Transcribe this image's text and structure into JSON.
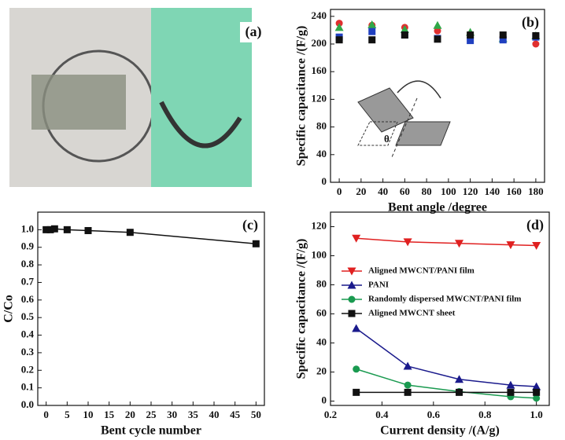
{
  "photo_panel": {
    "label": "(a)"
  },
  "chart_data": [
    {
      "type": "scatter",
      "label": "(b)",
      "x_label": "Bent angle /degree",
      "y_label": "Specific capacitance /(F/g)",
      "annotation": "θ",
      "x": [
        0,
        30,
        60,
        90,
        120,
        150,
        180
      ],
      "series": [
        {
          "color": "#e03030",
          "marker": "circle",
          "values": [
            230,
            227,
            224,
            219,
            214,
            210,
            200
          ]
        },
        {
          "color": "#30a848",
          "marker": "triangle-up",
          "values": [
            224,
            228,
            221,
            227,
            217,
            208,
            212
          ]
        },
        {
          "color": "#2040c0",
          "marker": "square",
          "values": [
            210,
            218,
            213,
            208,
            205,
            206,
            210
          ]
        },
        {
          "color": "#111111",
          "marker": "square",
          "values": [
            206,
            206,
            213,
            207,
            213,
            213,
            212
          ]
        }
      ],
      "xlim": [
        -8,
        188
      ],
      "xticks": [
        0,
        20,
        40,
        60,
        80,
        100,
        120,
        140,
        160,
        180
      ],
      "ylim": [
        0,
        250
      ],
      "yticks": [
        0,
        40,
        80,
        120,
        160,
        200,
        240
      ]
    },
    {
      "type": "line",
      "label": "(c)",
      "x_label": "Bent cycle number",
      "y_label": "C/Co",
      "x": [
        0,
        1,
        2,
        5,
        10,
        20,
        50
      ],
      "series": [
        {
          "color": "#111111",
          "marker": "square",
          "values": [
            1.0,
            1.0,
            1.005,
            1.0,
            0.995,
            0.985,
            0.92
          ]
        }
      ],
      "xlim": [
        -2,
        52
      ],
      "xticks": [
        0,
        5,
        10,
        15,
        20,
        25,
        30,
        35,
        40,
        45,
        50
      ],
      "ylim": [
        0,
        1.1
      ],
      "yticks": [
        {
          "value": 0,
          "label": "0.0"
        },
        0.1,
        0.2,
        0.3,
        0.4,
        0.5,
        0.6,
        0.7,
        0.8,
        0.9,
        {
          "value": 1,
          "label": "1.0"
        }
      ]
    },
    {
      "type": "line",
      "label": "(d)",
      "x_label": "Current density /(A/g)",
      "y_label": "Specific capacitance /(F/g)",
      "legend": "upper left",
      "x": [
        0.3,
        0.5,
        0.7,
        0.9,
        1.0
      ],
      "series": [
        {
          "name": "Aligned MWCNT/PANI film",
          "color": "#e02020",
          "marker": "triangle-down",
          "values": [
            112,
            109.5,
            108.5,
            107.5,
            107
          ]
        },
        {
          "name": "PANI",
          "color": "#1a1a8c",
          "marker": "triangle-up",
          "values": [
            50,
            24,
            15,
            11,
            10
          ]
        },
        {
          "name": "Randomly dispersed MWCNT/PANI film",
          "color": "#1a9a50",
          "marker": "circle",
          "values": [
            22,
            11,
            6.5,
            3,
            2
          ]
        },
        {
          "name": "Aligned MWCNT sheet",
          "color": "#111111",
          "marker": "square",
          "values": [
            6,
            6,
            6,
            6,
            6
          ]
        }
      ],
      "xlim": [
        0.2,
        1.05
      ],
      "xticks": [
        0.2,
        0.4,
        0.6,
        0.8,
        {
          "value": 1,
          "label": "1.0"
        }
      ],
      "ylim": [
        -3,
        130
      ],
      "yticks": [
        0,
        20,
        40,
        60,
        80,
        100,
        120
      ]
    }
  ]
}
